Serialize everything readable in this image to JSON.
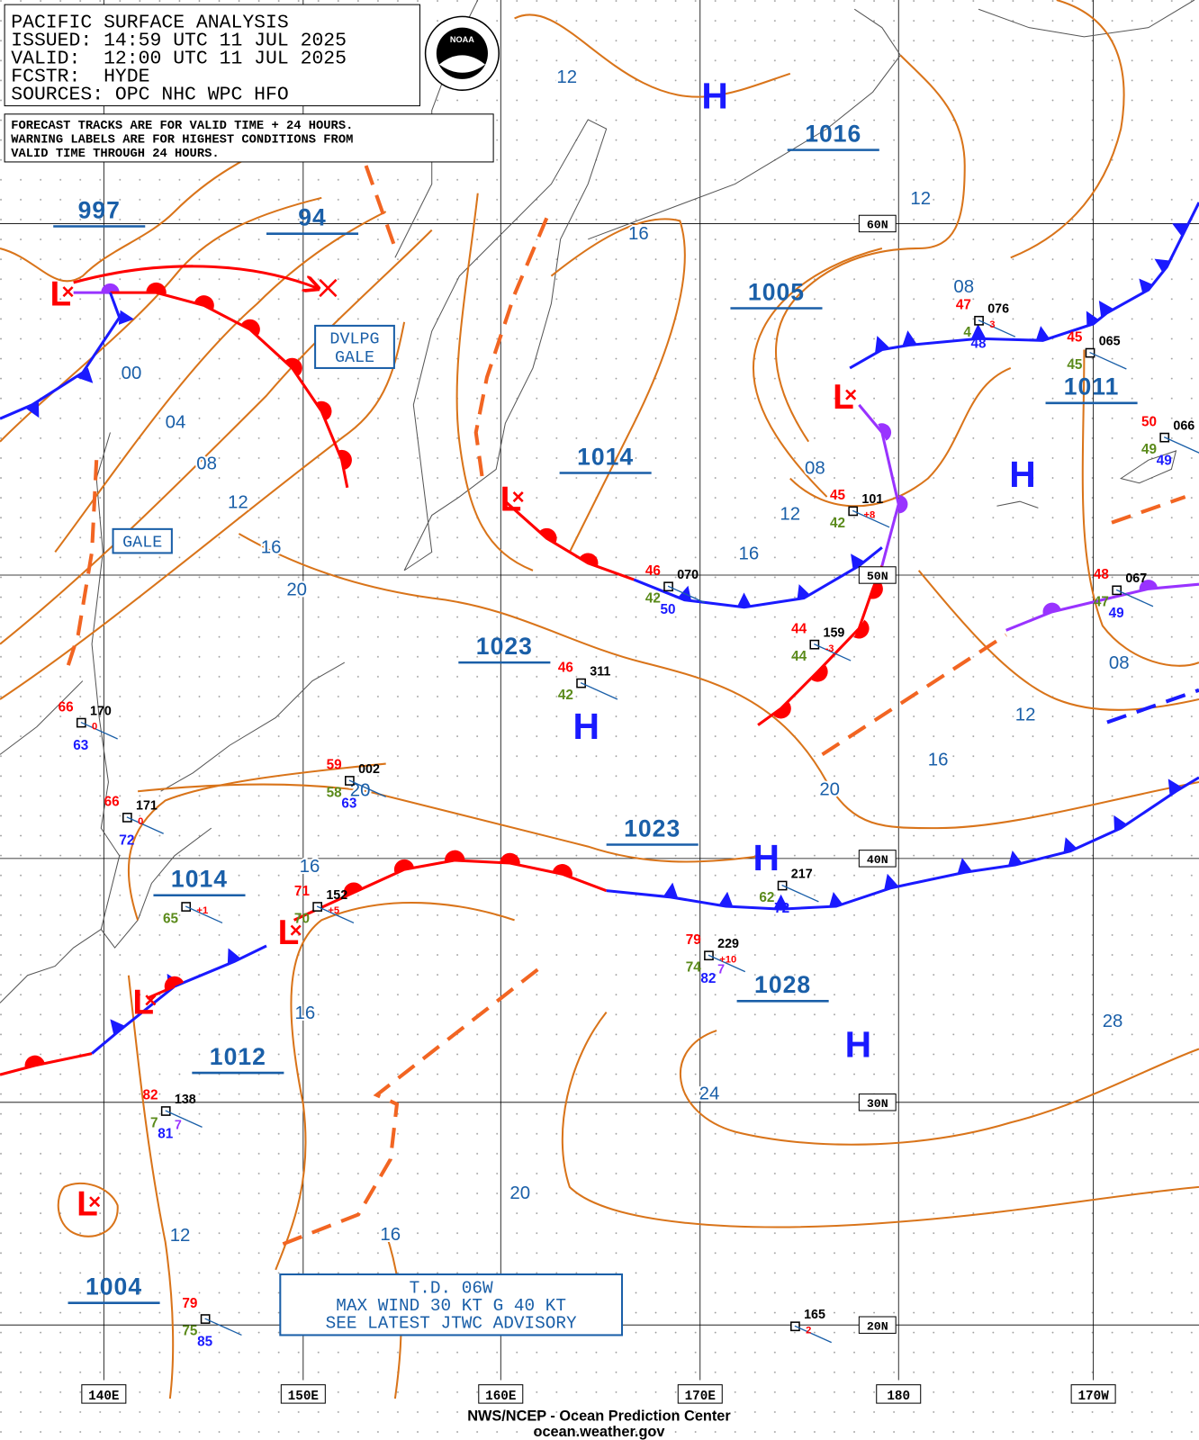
{
  "header": {
    "lines": [
      "PACIFIC SURFACE ANALYSIS",
      "ISSUED: 14:59 UTC 11 JUL 2025",
      "VALID:  12:00 UTC 11 JUL 2025",
      "FCSTR:  HYDE",
      "SOURCES: OPC NHC WPC HFO"
    ]
  },
  "note": {
    "lines": [
      "FORECAST TRACKS ARE FOR VALID TIME + 24 HOURS.",
      "WARNING LABELS ARE FOR HIGHEST CONDITIONS FROM",
      "VALID TIME THROUGH 24 HOURS."
    ]
  },
  "logo": "NOAA",
  "grid": {
    "lon_labels": [
      "140E",
      "150E",
      "160E",
      "170E",
      "180",
      "170W"
    ],
    "lat_labels": [
      "60N",
      "50N",
      "40N",
      "30N",
      "20N"
    ]
  },
  "central_pressures": [
    "997",
    "94",
    "1016",
    "1005",
    "1014",
    "1011",
    "1023",
    "1023",
    "1014",
    "1028",
    "1012",
    "1004"
  ],
  "high_symbols": [
    "H",
    "H",
    "H",
    "H",
    "H"
  ],
  "low_symbols": [
    "L",
    "L",
    "L",
    "L",
    "L",
    "L"
  ],
  "isobar_labels": [
    "12",
    "12",
    "16",
    "08",
    "00",
    "04",
    "08",
    "12",
    "16",
    "20",
    "08",
    "12",
    "16",
    "08",
    "12",
    "16",
    "20",
    "20",
    "16",
    "16",
    "28",
    "24",
    "20",
    "12",
    "16"
  ],
  "warnings": [
    {
      "lines": [
        "DVLPG",
        "GALE"
      ]
    },
    {
      "lines": [
        "GALE"
      ]
    }
  ],
  "advisory": {
    "lines": [
      "T.D. 06W",
      "MAX WIND 30 KT G 40 KT",
      "SEE LATEST JTWC ADVISORY"
    ]
  },
  "stations": [
    {
      "id": "076",
      "temp": "47",
      "dew": "4",
      "sst": "48",
      "tend": "3"
    },
    {
      "id": "065",
      "temp": "45",
      "dew": "45"
    },
    {
      "id": "066",
      "temp": "50",
      "dew": "49",
      "sst": "49"
    },
    {
      "id": "101",
      "temp": "45",
      "dew": "42",
      "tend": "+8"
    },
    {
      "id": "070",
      "temp": "46",
      "dew": "42",
      "sst": "50"
    },
    {
      "id": "067",
      "temp": "48",
      "dew": "47",
      "sst": "49"
    },
    {
      "id": "159",
      "temp": "44",
      "dew": "44",
      "tend": "-3"
    },
    {
      "id": "311",
      "temp": "46",
      "dew": "42"
    },
    {
      "id": "170",
      "temp": "66",
      "sst": "63",
      "tend": "0"
    },
    {
      "id": "002",
      "temp": "59",
      "dew": "58",
      "sst": "63"
    },
    {
      "id": "171",
      "temp": "66",
      "sst": "72",
      "tend": "0"
    },
    {
      "id": "217",
      "dew": "62",
      "sst": "72"
    },
    {
      "id": "152",
      "temp": "71",
      "dew": "70",
      "tend": "+5"
    },
    {
      "dew": "65",
      "tend": "+1"
    },
    {
      "id": "229",
      "temp": "79",
      "dew": "74",
      "vis": "7",
      "sst": "82",
      "tend": "+10"
    },
    {
      "id": "138",
      "temp": "82",
      "dew": "7",
      "vis": "7",
      "sst": "81"
    },
    {
      "id": "165",
      "tend": "2"
    },
    {
      "temp": "79",
      "dew": "75",
      "sst": "85"
    }
  ],
  "footer": {
    "lines": [
      "NWS/NCEP - Ocean Prediction Center",
      "ocean.weather.gov"
    ]
  }
}
